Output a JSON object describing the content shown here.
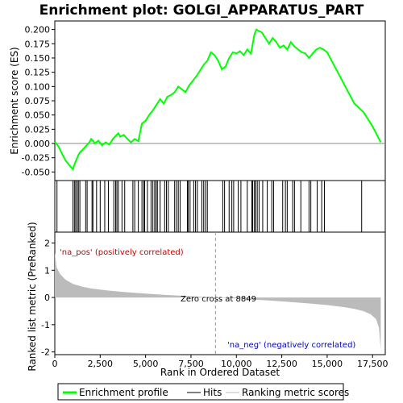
{
  "chart_data": {
    "type": "line",
    "title": "Enrichment plot: GOLGI_APPARATUS_PART",
    "top_panel": {
      "ylabel": "Enrichment score (ES)",
      "ylim": [
        -0.065,
        0.215
      ],
      "y_ticks": [
        -0.05,
        -0.025,
        0.0,
        0.025,
        0.05,
        0.075,
        0.1,
        0.125,
        0.15,
        0.175,
        0.2
      ],
      "y_tick_labels": [
        "-0.050",
        "-0.025",
        "0.000",
        "0.025",
        "0.050",
        "0.075",
        "0.100",
        "0.125",
        "0.150",
        "0.175",
        "0.200"
      ],
      "series": [
        {
          "name": "Enrichment profile",
          "color": "#00ff00",
          "x": [
            0,
            200,
            400,
            600,
            800,
            1000,
            1100,
            1200,
            1300,
            1400,
            1500,
            1700,
            1900,
            2000,
            2100,
            2200,
            2400,
            2600,
            2800,
            3000,
            3200,
            3400,
            3500,
            3600,
            3800,
            4000,
            4200,
            4400,
            4600,
            4800,
            5000,
            5200,
            5400,
            5600,
            5800,
            6000,
            6200,
            6400,
            6600,
            6800,
            7000,
            7200,
            7400,
            7600,
            7800,
            8000,
            8200,
            8400,
            8600,
            8800,
            9000,
            9200,
            9400,
            9600,
            9800,
            10000,
            10200,
            10400,
            10600,
            10800,
            11000,
            11100,
            11200,
            11400,
            11600,
            11800,
            12000,
            12200,
            12400,
            12600,
            12800,
            13000,
            13200,
            13400,
            13600,
            13800,
            14000,
            14200,
            14400,
            14600,
            14800,
            15000,
            15500,
            16000,
            16500,
            17000,
            17500,
            17950
          ],
          "y": [
            0.003,
            -0.005,
            -0.018,
            -0.03,
            -0.038,
            -0.045,
            -0.035,
            -0.028,
            -0.02,
            -0.015,
            -0.012,
            -0.005,
            0.002,
            0.008,
            0.005,
            0.0,
            0.005,
            -0.003,
            0.002,
            -0.002,
            0.008,
            0.015,
            0.018,
            0.012,
            0.015,
            0.008,
            0.002,
            0.008,
            0.004,
            0.035,
            0.04,
            0.05,
            0.058,
            0.068,
            0.078,
            0.07,
            0.082,
            0.085,
            0.09,
            0.1,
            0.095,
            0.09,
            0.102,
            0.11,
            0.118,
            0.128,
            0.138,
            0.145,
            0.16,
            0.155,
            0.145,
            0.13,
            0.135,
            0.15,
            0.16,
            0.158,
            0.162,
            0.155,
            0.165,
            0.158,
            0.192,
            0.2,
            0.198,
            0.195,
            0.185,
            0.175,
            0.185,
            0.178,
            0.168,
            0.172,
            0.165,
            0.178,
            0.17,
            0.165,
            0.16,
            0.158,
            0.15,
            0.158,
            0.165,
            0.168,
            0.165,
            0.16,
            0.13,
            0.1,
            0.07,
            0.055,
            0.03,
            0.002
          ]
        }
      ]
    },
    "hits_panel": {
      "legend_label": "Hits",
      "hit_ranks": [
        120,
        1000,
        1080,
        1150,
        1230,
        1300,
        1380,
        1700,
        1780,
        2050,
        2100,
        2300,
        2500,
        2750,
        2950,
        3250,
        3350,
        3420,
        3500,
        3700,
        3850,
        4300,
        4400,
        4600,
        4800,
        4900,
        4950,
        5100,
        5300,
        5400,
        5500,
        5580,
        5650,
        5800,
        6050,
        6150,
        6250,
        6600,
        6700,
        6800,
        6900,
        7300,
        7350,
        7450,
        7650,
        7750,
        7850,
        8100,
        8200,
        8300,
        8400,
        9250,
        9350,
        9600,
        9750,
        9850,
        10100,
        10250,
        10600,
        10850,
        10900,
        11000,
        11050,
        11150,
        11250,
        11450,
        11700,
        11950,
        12050,
        12550,
        12700,
        12800,
        13100,
        13200,
        13550,
        14000,
        14100,
        14450,
        14700,
        14850,
        16900
      ]
    },
    "metric_panel": {
      "ylabel": "Ranked list metric (PreRanked)",
      "legend_label": "Ranking metric scores",
      "ylim": [
        -2.1,
        2.4
      ],
      "y_ticks": [
        -2,
        -1,
        0,
        1,
        2
      ],
      "y_tick_labels": [
        "-2",
        "-1",
        "0",
        "1",
        "2"
      ],
      "x": [
        0,
        100,
        300,
        600,
        1000,
        1500,
        2000,
        3000,
        4000,
        5000,
        6000,
        7000,
        8000,
        8849,
        10000,
        11000,
        12000,
        13000,
        14000,
        15000,
        16000,
        16500,
        17000,
        17400,
        17700,
        17850,
        17950
      ],
      "y": [
        1.65,
        1.1,
        0.85,
        0.65,
        0.5,
        0.4,
        0.33,
        0.25,
        0.19,
        0.14,
        0.1,
        0.06,
        0.03,
        0.0,
        -0.04,
        -0.08,
        -0.12,
        -0.17,
        -0.22,
        -0.28,
        -0.36,
        -0.42,
        -0.5,
        -0.62,
        -0.8,
        -1.1,
        -1.9
      ],
      "zero_cross_label": "Zero cross at 8849",
      "zero_cross": 8849,
      "pos_label": "'na_pos' (positively correlated)",
      "neg_label": "'na_neg' (negatively correlated)"
    },
    "x_axis": {
      "label": "Rank in Ordered Dataset",
      "range": [
        0,
        18200
      ],
      "ticks": [
        0,
        2500,
        5000,
        7500,
        10000,
        12500,
        15000,
        17500
      ],
      "tick_labels": [
        "0",
        "2,500",
        "5,000",
        "7,500",
        "10,000",
        "12,500",
        "15,000",
        "17,500"
      ]
    },
    "legend": {
      "placement": "bottom",
      "items": [
        {
          "label": "Enrichment profile",
          "color": "#00ff00"
        },
        {
          "label": "Hits",
          "color": "#000000"
        },
        {
          "label": "Ranking metric scores",
          "color": "#bbbbbb"
        }
      ]
    },
    "colors": {
      "profile": "#00ff00",
      "metric_fill": "#bbbbbb",
      "pos_text": "#cc0000",
      "neg_text": "#0000cc"
    }
  }
}
